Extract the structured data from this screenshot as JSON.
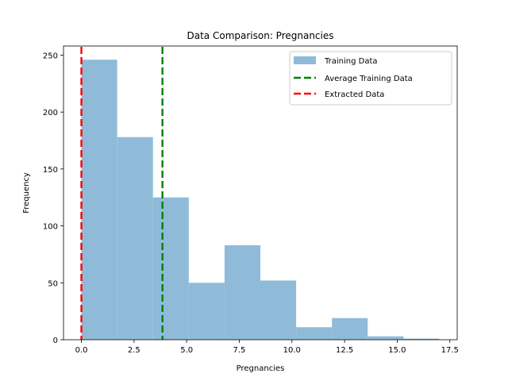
{
  "chart_data": {
    "type": "bar",
    "title": "Data Comparison: Pregnancies",
    "xlabel": "Pregnancies",
    "ylabel": "Frequency",
    "xlim": [
      -0.85,
      17.85
    ],
    "ylim": [
      0,
      258
    ],
    "xticks": [
      0.0,
      2.5,
      5.0,
      7.5,
      10.0,
      12.5,
      15.0,
      17.5
    ],
    "xtick_labels": [
      "0.0",
      "2.5",
      "5.0",
      "7.5",
      "10.0",
      "12.5",
      "15.0",
      "17.5"
    ],
    "yticks": [
      0,
      50,
      100,
      150,
      200,
      250
    ],
    "ytick_labels": [
      "0",
      "50",
      "100",
      "150",
      "200",
      "250"
    ],
    "grid": false,
    "legend_position": "top-right",
    "histogram": {
      "name": "Training Data",
      "color": "#8fbbd9",
      "bin_edges": [
        0,
        1.7,
        3.4,
        5.1,
        6.8,
        8.5,
        10.2,
        11.9,
        13.6,
        15.3,
        17.0
      ],
      "counts": [
        246,
        178,
        125,
        50,
        83,
        52,
        11,
        19,
        3,
        1
      ]
    },
    "reference_lines": [
      {
        "name": "Average Training Data",
        "x": 3.85,
        "color": "#008000",
        "style": "dashed"
      },
      {
        "name": "Extracted Data",
        "x": 0.0,
        "color": "#ff0000",
        "style": "dashed"
      }
    ]
  }
}
